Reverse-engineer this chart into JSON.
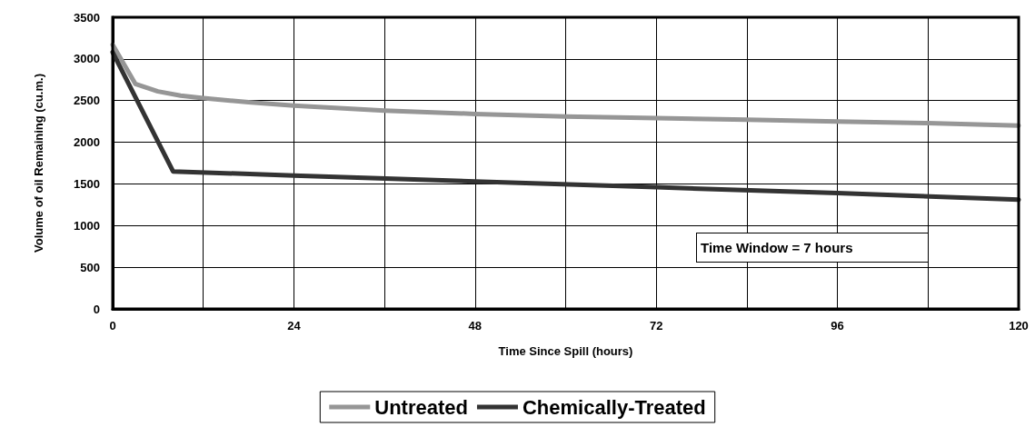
{
  "chart_data": {
    "type": "line",
    "xlabel": "Time Since Spill (hours)",
    "ylabel": "Volume of oil Remaining (cu.m.)",
    "xlim": [
      0,
      120
    ],
    "xticks": [
      0,
      {
        "value": 12,
        "label": null
      },
      24,
      {
        "value": 36,
        "label": null
      },
      48,
      {
        "value": 60,
        "label": null
      },
      72,
      {
        "value": 84,
        "label": null
      },
      96,
      {
        "value": 108,
        "label": null
      },
      120
    ],
    "ylim": [
      0,
      3500
    ],
    "yticks": [
      0,
      500,
      1000,
      1500,
      2000,
      2500,
      3000,
      3500
    ],
    "grid": true,
    "legend": "bottom",
    "marker": "none",
    "line_style": "solid",
    "annotations": [
      "Time Window = 7 hours"
    ],
    "series": [
      {
        "name": "Untreated",
        "color": "#969696",
        "x": [
          0,
          3,
          6,
          9,
          12,
          18,
          24,
          36,
          48,
          60,
          72,
          84,
          96,
          108,
          120
        ],
        "values": [
          3170,
          2700,
          2610,
          2560,
          2530,
          2480,
          2440,
          2380,
          2340,
          2310,
          2290,
          2270,
          2250,
          2230,
          2200
        ]
      },
      {
        "name": "Chemically-Treated",
        "color": "#333333",
        "x": [
          0,
          8,
          24,
          48,
          72,
          96,
          120
        ],
        "values": [
          3080,
          1650,
          1600,
          1530,
          1460,
          1390,
          1310
        ]
      }
    ]
  }
}
